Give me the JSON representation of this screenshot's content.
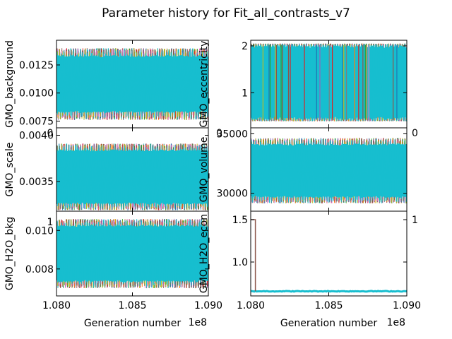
{
  "figure": {
    "title": "Parameter history for Fit_all_contrasts_v7"
  },
  "colors": [
    "#1f77b4",
    "#ff7f0e",
    "#2ca02c",
    "#d62728",
    "#9467bd",
    "#8c564b",
    "#e377c2",
    "#7f7f7f",
    "#bcbd22",
    "#17becf"
  ],
  "chart_data": [
    {
      "type": "line",
      "id": "GMO_background",
      "ylabel": "GMO_background",
      "xlabel": "",
      "xlim": [
        108000000.0,
        109000000.0
      ],
      "ylim": [
        0.0069,
        0.0147
      ],
      "yticks": [
        0.0075,
        0.01,
        0.0125
      ],
      "ytick_labels": [
        "0.0075",
        "0.0100",
        "0.0125"
      ],
      "xticks": [],
      "xtick_labels": [],
      "x_offset": "",
      "band_low": 0.0082,
      "band_high": 0.0134,
      "band_jitter": 0.0006,
      "dominant_color": "#17becf"
    },
    {
      "type": "line",
      "id": "GMO_eccentricity",
      "ylabel": "GMO_eccentricity",
      "xlabel": "",
      "xlim": [
        108000000.0,
        109000000.0
      ],
      "ylim": [
        0.25,
        2.12
      ],
      "yticks": [
        1,
        2
      ],
      "ytick_labels": [
        "1",
        "2"
      ],
      "xticks": [],
      "xtick_labels": [],
      "x_offset": "",
      "band_low": 0.42,
      "band_high": 2.02,
      "band_jitter": 0.03,
      "dominant_color": "#17becf"
    },
    {
      "type": "line",
      "id": "GMO_scale",
      "ylabel": "GMO_scale",
      "xlabel": "",
      "xlim": [
        108000000.0,
        109000000.0
      ],
      "ylim": [
        0.00318,
        0.00408
      ],
      "yticks": [
        0.0035,
        0.004
      ],
      "ytick_labels": [
        "0.0035",
        "0.0040"
      ],
      "xticks": [],
      "xtick_labels": [],
      "x_offset": "",
      "band_low": 0.00325,
      "band_high": 0.00385,
      "band_jitter": 6e-05,
      "dominant_color": "#17becf"
    },
    {
      "type": "line",
      "id": "GMO_volume",
      "ylabel": "GMO_volume",
      "xlabel": "",
      "xlim": [
        108000000.0,
        109000000.0
      ],
      "ylim": [
        28500,
        35500
      ],
      "yticks": [
        30000,
        35000
      ],
      "ytick_labels": [
        "30000",
        "35000"
      ],
      "xticks": [],
      "xtick_labels": [],
      "x_offset": "",
      "band_low": 29600,
      "band_high": 34200,
      "band_jitter": 450,
      "dominant_color": "#17becf"
    },
    {
      "type": "line",
      "id": "GMO_H2O_bkg",
      "ylabel": "GMO_H2O_bkg",
      "xlabel": "Generation number",
      "xlim": [
        108000000.0,
        109000000.0
      ],
      "ylim": [
        0.0066,
        0.011
      ],
      "yticks": [
        0.008,
        0.01
      ],
      "ytick_labels": [
        "0.008",
        "0.010"
      ],
      "xticks": [
        108000000.0,
        108500000.0,
        109000000.0
      ],
      "xtick_labels": [
        "1.080",
        "1.085",
        "1.090"
      ],
      "x_offset": "1e8",
      "band_low": 0.0073,
      "band_high": 0.0103,
      "band_jitter": 0.0003,
      "dominant_color": "#17becf"
    },
    {
      "type": "line",
      "id": "GMO_H2O_econ",
      "ylabel": "GMO_H2O_econ",
      "xlabel": "Generation number",
      "xlim": [
        108000000.0,
        109000000.0
      ],
      "ylim": [
        0.6,
        1.6
      ],
      "yticks": [
        1.0,
        1.5
      ],
      "ytick_labels": [
        "1.0",
        "1.5"
      ],
      "xticks": [
        108000000.0,
        108500000.0,
        109000000.0
      ],
      "xtick_labels": [
        "1.080",
        "1.085",
        "1.090"
      ],
      "x_offset": "1e8",
      "plateau_y": 1.5,
      "plateau_end_x": 108030000.0,
      "flat_y": 0.655,
      "dominant_color": "#17becf",
      "spike_color": "#8c564b"
    }
  ],
  "overlap_ticklabels": [
    {
      "panel": 1,
      "text": "0"
    },
    {
      "panel": 0,
      "text": "0"
    },
    {
      "panel": 2,
      "text": "1"
    },
    {
      "panel": 3,
      "text": "0"
    },
    {
      "panel": 3,
      "text": "1"
    }
  ]
}
